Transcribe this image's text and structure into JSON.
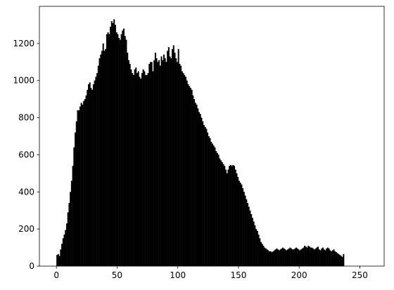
{
  "chart_data": {
    "type": "bar",
    "title": "",
    "xlabel": "",
    "ylabel": "",
    "xlim": [
      -14,
      270
    ],
    "ylim": [
      0,
      1400
    ],
    "grid": false,
    "bar_color": "#000000",
    "x_ticks": [
      0,
      50,
      100,
      150,
      200,
      250
    ],
    "x_tick_labels": [
      "0",
      "50",
      "100",
      "150",
      "200",
      "250"
    ],
    "y_ticks": [
      0,
      200,
      400,
      600,
      800,
      1000,
      1200
    ],
    "y_tick_labels": [
      "0",
      "200",
      "400",
      "600",
      "800",
      "1000",
      "1200"
    ],
    "bins": {
      "start": 0,
      "width": 1
    },
    "values": [
      60,
      65,
      55,
      90,
      120,
      150,
      170,
      195,
      230,
      290,
      340,
      400,
      460,
      540,
      640,
      720,
      780,
      840,
      840,
      860,
      880,
      870,
      890,
      900,
      920,
      950,
      980,
      990,
      960,
      950,
      980,
      1000,
      1020,
      1040,
      1080,
      1120,
      1140,
      1160,
      1200,
      1160,
      1170,
      1250,
      1260,
      1250,
      1290,
      1320,
      1310,
      1330,
      1300,
      1260,
      1250,
      1230,
      1220,
      1250,
      1270,
      1280,
      1240,
      1220,
      1150,
      1110,
      1090,
      1060,
      1040,
      1030,
      1060,
      1070,
      1040,
      1050,
      1020,
      1010,
      1040,
      1060,
      1050,
      1030,
      1030,
      1040,
      1090,
      1100,
      1100,
      1050,
      1110,
      1150,
      1120,
      1100,
      1110,
      1080,
      1130,
      1110,
      1140,
      1120,
      1100,
      1160,
      1180,
      1130,
      1120,
      1170,
      1190,
      1150,
      1120,
      1100,
      1170,
      1090,
      1080,
      1050,
      1040,
      1030,
      1020,
      1000,
      980,
      970,
      960,
      950,
      920,
      900,
      880,
      870,
      850,
      830,
      820,
      800,
      780,
      760,
      750,
      740,
      720,
      700,
      690,
      670,
      660,
      650,
      640,
      620,
      610,
      600,
      580,
      570,
      560,
      550,
      540,
      520,
      500,
      520,
      540,
      545,
      540,
      545,
      540,
      520,
      500,
      480,
      460,
      450,
      440,
      420,
      400,
      380,
      360,
      340,
      320,
      300,
      280,
      260,
      240,
      220,
      200,
      190,
      170,
      150,
      130,
      120,
      110,
      100,
      95,
      90,
      85,
      80,
      80,
      75,
      80,
      85,
      90,
      95,
      90,
      85,
      90,
      95,
      100,
      95,
      90,
      85,
      90,
      95,
      100,
      95,
      90,
      90,
      95,
      100,
      95,
      90,
      85,
      90,
      95,
      100,
      110,
      105,
      100,
      110,
      105,
      100,
      100,
      95,
      90,
      95,
      100,
      105,
      90,
      85,
      95,
      100,
      90,
      85,
      95,
      100,
      95,
      85,
      80,
      85,
      90,
      80,
      75,
      70,
      65,
      60,
      55,
      50,
      65
    ]
  }
}
